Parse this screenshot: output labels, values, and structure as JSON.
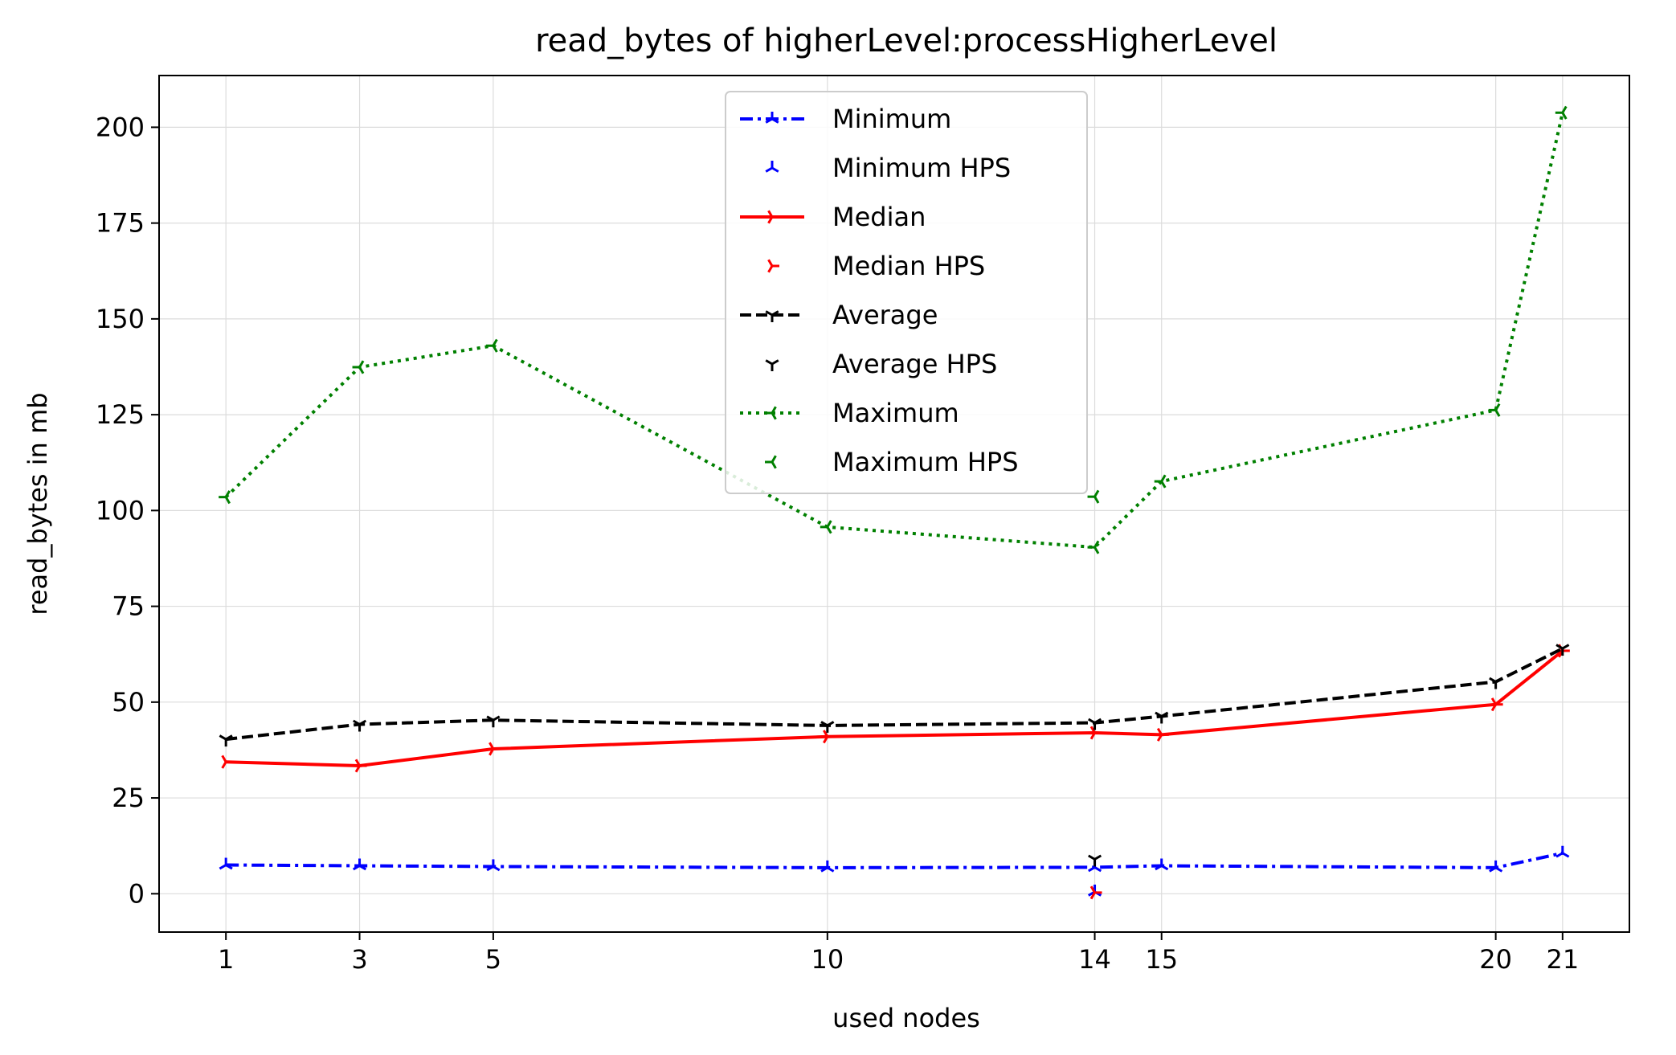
{
  "chart_data": {
    "type": "line",
    "title": "read_bytes of higherLevel:processHigherLevel",
    "xlabel": "used nodes",
    "ylabel": "read_bytes in mb",
    "x": [
      1,
      3,
      5,
      10,
      14,
      15,
      20,
      21
    ],
    "x_ticks": [
      "1",
      "3",
      "5",
      "10",
      "14",
      "15",
      "20",
      "21"
    ],
    "y_ticks": [
      "0",
      "25",
      "50",
      "75",
      "100",
      "125",
      "150",
      "175",
      "200"
    ],
    "xlim": [
      0,
      22
    ],
    "ylim": [
      -10,
      213.5
    ],
    "grid": true,
    "legend_position": "upper center",
    "series": [
      {
        "name": "Minimum",
        "kind": "line",
        "color": "#0000ff",
        "dash": "dashdot",
        "marker": "tri_up",
        "x": [
          1,
          3,
          5,
          10,
          14,
          15,
          20,
          21
        ],
        "y": [
          7.5,
          7.3,
          7.1,
          6.8,
          6.9,
          7.3,
          6.8,
          10.6
        ]
      },
      {
        "name": "Minimum HPS",
        "kind": "point",
        "color": "#0000ff",
        "marker": "tri_up",
        "x": [
          14
        ],
        "y": [
          0.5
        ]
      },
      {
        "name": "Median",
        "kind": "line",
        "color": "#ff0000",
        "dash": "solid",
        "marker": "tri_right",
        "x": [
          1,
          3,
          5,
          10,
          14,
          15,
          20,
          21
        ],
        "y": [
          34.4,
          33.4,
          37.8,
          41.0,
          42.0,
          41.5,
          49.4,
          63.4
        ]
      },
      {
        "name": "Median HPS",
        "kind": "point",
        "color": "#ff0000",
        "marker": "tri_right",
        "x": [
          14
        ],
        "y": [
          0.3
        ]
      },
      {
        "name": "Average",
        "kind": "line",
        "color": "#000000",
        "dash": "dashed",
        "marker": "tri_down",
        "x": [
          1,
          3,
          5,
          10,
          14,
          15,
          20,
          21
        ],
        "y": [
          40.3,
          44.2,
          45.3,
          43.9,
          44.6,
          46.3,
          55.3,
          64.0
        ]
      },
      {
        "name": "Average HPS",
        "kind": "point",
        "color": "#000000",
        "marker": "tri_down",
        "x": [
          14
        ],
        "y": [
          9.0
        ]
      },
      {
        "name": "Maximum",
        "kind": "line",
        "color": "#008000",
        "dash": "dotted",
        "marker": "tri_left",
        "x": [
          1,
          3,
          5,
          10,
          14,
          15,
          20,
          21
        ],
        "y": [
          103.5,
          137.4,
          143.0,
          95.7,
          90.4,
          107.6,
          126.2,
          203.8
        ]
      },
      {
        "name": "Maximum HPS",
        "kind": "point",
        "color": "#008000",
        "marker": "tri_left",
        "x": [
          14
        ],
        "y": [
          103.6
        ]
      }
    ]
  }
}
